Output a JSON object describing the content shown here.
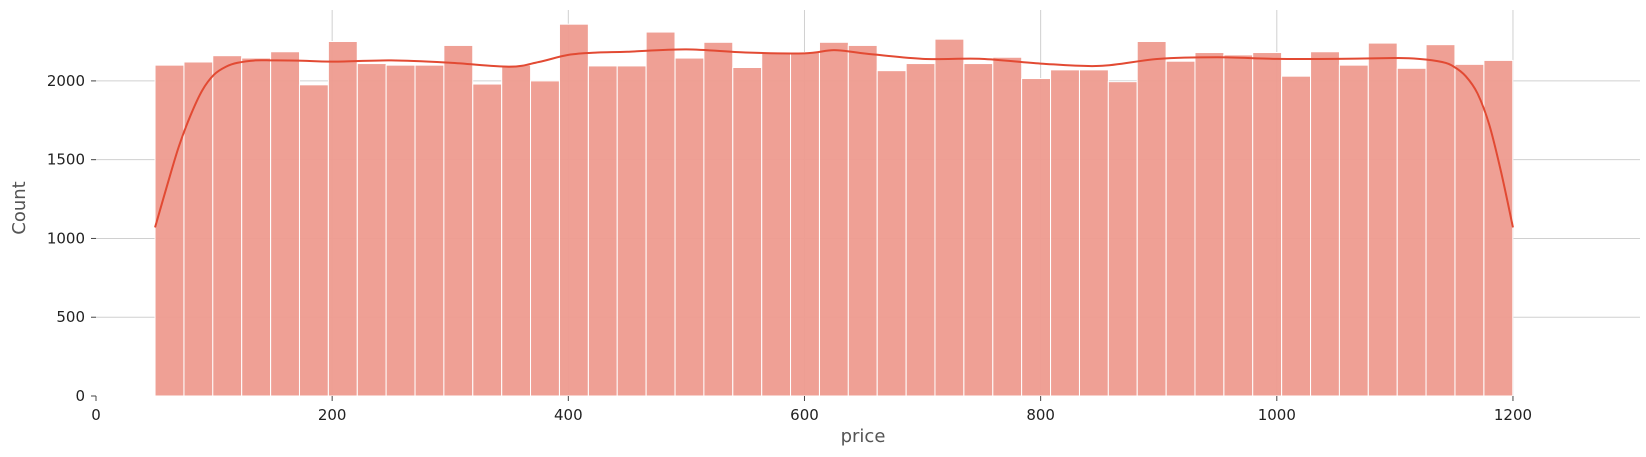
{
  "chart_data": {
    "type": "bar",
    "subtype": "histogram-with-kde",
    "title": "",
    "xlabel": "price",
    "ylabel": "Count",
    "xlim": [
      0,
      1250
    ],
    "ylim": [
      0,
      2450
    ],
    "x_ticks": [
      0,
      200,
      400,
      600,
      800,
      1000,
      1200
    ],
    "y_ticks": [
      0,
      500,
      1000,
      1500,
      2000
    ],
    "grid": true,
    "bar_color": "#ee9b8f",
    "kde_color": "#e24a33",
    "bin_width": 24.46,
    "bin_starts": [
      50.0,
      74.5,
      98.9,
      123.4,
      147.9,
      172.3,
      196.8,
      221.3,
      245.7,
      270.2,
      294.6,
      319.1,
      343.6,
      368.0,
      392.5,
      417.0,
      441.4,
      465.9,
      490.4,
      514.8,
      539.3,
      563.8,
      588.2,
      612.7,
      637.1,
      661.6,
      686.1,
      710.5,
      735.0,
      759.5,
      783.9,
      808.4,
      832.9,
      857.3,
      881.8,
      906.3,
      930.7,
      955.2,
      979.6,
      1004.1,
      1028.6,
      1053.0,
      1077.5,
      1102.0,
      1126.4,
      1150.9,
      1175.4
    ],
    "counts": [
      2100,
      2120,
      2160,
      2145,
      2185,
      1975,
      2250,
      2110,
      2100,
      2100,
      2225,
      1980,
      2100,
      2000,
      2360,
      2095,
      2095,
      2310,
      2145,
      2245,
      2085,
      2180,
      2180,
      2245,
      2225,
      2065,
      2110,
      2265,
      2110,
      2150,
      2015,
      2070,
      2070,
      1995,
      2250,
      2125,
      2180,
      2165,
      2180,
      2030,
      2185,
      2100,
      2240,
      2080,
      2230,
      2105,
      2130
    ],
    "kde": {
      "x": [
        50,
        60,
        70,
        80,
        90,
        100,
        110,
        120,
        135,
        150,
        175,
        200,
        250,
        300,
        350,
        375,
        400,
        425,
        450,
        500,
        550,
        600,
        625,
        650,
        700,
        750,
        800,
        850,
        900,
        950,
        1000,
        1050,
        1100,
        1120,
        1140,
        1150,
        1160,
        1170,
        1180,
        1190,
        1200
      ],
      "y": [
        1070,
        1330,
        1580,
        1780,
        1940,
        2040,
        2090,
        2115,
        2130,
        2130,
        2128,
        2122,
        2130,
        2115,
        2090,
        2120,
        2165,
        2180,
        2185,
        2200,
        2180,
        2175,
        2195,
        2175,
        2140,
        2140,
        2110,
        2095,
        2140,
        2150,
        2140,
        2140,
        2145,
        2140,
        2120,
        2090,
        2030,
        1920,
        1720,
        1420,
        1070
      ]
    }
  }
}
